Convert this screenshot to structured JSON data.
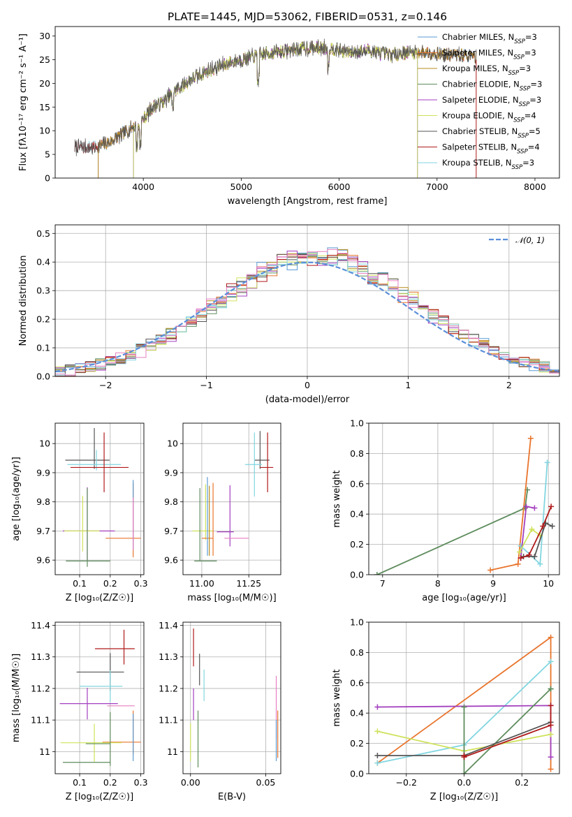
{
  "figure": {
    "title": "PLATE=1445, MJD=53062, FIBERID=0531, z=0.146"
  },
  "colors": {
    "chabrier_miles": "#5a9bd4",
    "salpeter_miles": "#e8742c",
    "kroupa_miles": "#b78b1c",
    "chabrier_elodie": "#5e8c5e",
    "salpeter_elodie": "#a33fbf",
    "kroupa_elodie": "#cfe25a",
    "chabrier_stelib": "#555555",
    "salpeter_stelib": "#b01a1a",
    "kroupa_stelib": "#82d6e0",
    "pink": "#e77fc0",
    "gauss": "#5b8fd9",
    "grid": "#b0b0b0"
  },
  "chart_data": [
    {
      "id": "spectrum",
      "type": "line",
      "xlabel": "wavelength [Angstrom, rest frame]",
      "ylabel": "Flux [fλ10⁻¹⁷ erg cm⁻² s⁻¹ A⁻¹]",
      "xlim": [
        3100,
        8250
      ],
      "ylim": [
        0,
        32
      ],
      "xticks": [
        4000,
        5000,
        6000,
        7000,
        8000
      ],
      "yticks": [
        0,
        5,
        10,
        15,
        20,
        25,
        30
      ],
      "grid": false,
      "legend_position": "top-right",
      "x_range_data": [
        3300,
        7400
      ],
      "spectrum_anchors": {
        "x": [
          3300,
          3500,
          3650,
          3800,
          3900,
          3950,
          4000,
          4100,
          4200,
          4300,
          4500,
          4700,
          4900,
          5100,
          5300,
          5500,
          5700,
          5900,
          6100,
          6300,
          6500,
          6700,
          6900,
          7100,
          7300,
          7400
        ],
        "y": [
          6.5,
          6.5,
          7.5,
          9.5,
          11,
          10.5,
          12.5,
          15,
          16,
          18,
          21,
          23,
          24.5,
          25.5,
          26.5,
          27,
          27.5,
          27.5,
          26.5,
          27,
          26,
          26.5,
          26.5,
          26,
          26,
          25.5
        ]
      },
      "series": [
        {
          "name": "Chabrier MILES, N_SSP=3",
          "color_key": "chabrier_miles",
          "start": 3540,
          "end": 7400
        },
        {
          "name": "Salpeter MILES, N_SSP=3",
          "color_key": "salpeter_miles",
          "start": 3540,
          "end": 7400
        },
        {
          "name": "Kroupa MILES, N_SSP=3",
          "color_key": "kroupa_miles",
          "start": 3540,
          "end": 7400
        },
        {
          "name": "Chabrier ELODIE, N_SSP=3",
          "color_key": "chabrier_elodie",
          "start": 3900,
          "end": 6800
        },
        {
          "name": "Salpeter ELODIE, N_SSP=3",
          "color_key": "salpeter_elodie",
          "start": 3900,
          "end": 6800
        },
        {
          "name": "Kroupa ELODIE, N_SSP=4",
          "color_key": "kroupa_elodie",
          "start": 3900,
          "end": 6800
        },
        {
          "name": "Chabrier STELIB, N_SSP=5",
          "color_key": "chabrier_stelib",
          "start": 3300,
          "end": 7400
        },
        {
          "name": "Salpeter STELIB, N_SSP=4",
          "color_key": "salpeter_stelib",
          "start": 3300,
          "end": 7400
        },
        {
          "name": "Kroupa STELIB, N_SSP=3",
          "color_key": "kroupa_stelib",
          "start": 3300,
          "end": 7400
        }
      ]
    },
    {
      "id": "residual_hist",
      "type": "line",
      "xlabel": "(data-model)/error",
      "ylabel": "Normed distribution",
      "xlim": [
        -2.5,
        2.5
      ],
      "ylim": [
        0,
        0.53
      ],
      "xticks": [
        -2,
        -1,
        0,
        1,
        2
      ],
      "xtick_labels": [
        "−2",
        "−1",
        "0",
        "1",
        "2"
      ],
      "yticks": [
        0.0,
        0.1,
        0.2,
        0.3,
        0.4,
        0.5
      ],
      "ytick_labels": [
        "0.0",
        "0.1",
        "0.2",
        "0.3",
        "0.4",
        "0.5"
      ],
      "grid": true,
      "legend_position": "top-right",
      "gaussian": {
        "name": "𝒩(0, 1)",
        "mean": 0,
        "sigma": 1,
        "color_key": "gauss"
      },
      "histogram_bins": {
        "start": -2.5,
        "width": 0.1,
        "count": 50
      }
    },
    {
      "id": "age_vs_Z",
      "type": "scatter",
      "xlabel": "Z [log₁₀(Z/Z☉)]",
      "ylabel": "age  [log₁₀(age/yr)]",
      "xlim": [
        0.02,
        0.31
      ],
      "ylim": [
        9.55,
        10.07
      ],
      "xticks": [
        0.1,
        0.2,
        0.3
      ],
      "yticks": [
        9.6,
        9.7,
        9.8,
        9.9,
        10.0
      ],
      "grid": true,
      "points": [
        {
          "x": 0.148,
          "y": 9.943,
          "xerr": [
            0.095,
            0.05
          ],
          "yerr": [
            0.03,
            0.11
          ],
          "color_key": "chabrier_stelib"
        },
        {
          "x": 0.155,
          "y": 9.928,
          "xerr": [
            0.095,
            0.08
          ],
          "yerr": [
            0.02,
            0.05
          ],
          "color_key": "kroupa_stelib"
        },
        {
          "x": 0.18,
          "y": 9.918,
          "xerr": [
            0.11,
            0.08
          ],
          "yerr": [
            0.085,
            0.12
          ],
          "color_key": "salpeter_stelib"
        },
        {
          "x": 0.125,
          "y": 9.7,
          "xerr": [
            0.08,
            0.09
          ],
          "yerr": [
            0.1,
            0.15
          ],
          "color_key": "salpeter_elodie"
        },
        {
          "x": 0.11,
          "y": 9.7,
          "xerr": [
            0.06,
            0.055
          ],
          "yerr": [
            0.07,
            0.12
          ],
          "color_key": "kroupa_elodie"
        },
        {
          "x": 0.275,
          "y": 9.675,
          "xerr": [
            0.09,
            0.025
          ],
          "yerr": [
            0.065,
            0.19
          ],
          "color_key": "salpeter_miles"
        },
        {
          "x": 0.275,
          "y": 9.675,
          "xerr": [
            0.0,
            0.0
          ],
          "yerr": [
            0.04,
            0.2
          ],
          "color_key": "chabrier_miles"
        },
        {
          "x": 0.275,
          "y": 9.675,
          "xerr": [
            0.0,
            0.0
          ],
          "yerr": [
            0.04,
            0.14
          ],
          "color_key": "pink"
        },
        {
          "x": 0.125,
          "y": 9.597,
          "xerr": [
            0.07,
            0.075
          ],
          "yerr": [
            0.02,
            0.25
          ],
          "color_key": "chabrier_elodie"
        }
      ]
    },
    {
      "id": "age_vs_mass",
      "type": "scatter",
      "xlabel": "mass [log₁₀(M/M☉)]",
      "ylabel": "",
      "xlim": [
        10.9,
        11.42
      ],
      "ylim": [
        9.55,
        10.07
      ],
      "xticks": [
        11.0,
        11.25
      ],
      "xtick_labels": [
        "11.00",
        "11.25"
      ],
      "yticks": [
        9.6,
        9.7,
        9.8,
        9.9,
        10.0
      ],
      "grid": true,
      "points": [
        {
          "x": 11.31,
          "y": 9.943,
          "xerr": [
            0.03,
            0.05
          ],
          "yerr": [
            0.03,
            0.1
          ],
          "color_key": "chabrier_stelib"
        },
        {
          "x": 11.28,
          "y": 9.928,
          "xerr": [
            0.05,
            0.04
          ],
          "yerr": [
            0.11,
            0.11
          ],
          "color_key": "kroupa_stelib"
        },
        {
          "x": 11.35,
          "y": 9.918,
          "xerr": [
            0.04,
            0.03
          ],
          "yerr": [
            0.085,
            0.12
          ],
          "color_key": "salpeter_stelib"
        },
        {
          "x": 11.15,
          "y": 9.697,
          "xerr": [
            0.07,
            0.02
          ],
          "yerr": [
            0.05,
            0.16
          ],
          "color_key": "salpeter_elodie"
        },
        {
          "x": 11.02,
          "y": 9.7,
          "xerr": [
            0.07,
            0.04
          ],
          "yerr": [
            0.03,
            0.16
          ],
          "color_key": "kroupa_elodie"
        },
        {
          "x": 11.06,
          "y": 9.675,
          "xerr": [
            0.06,
            0.0
          ],
          "yerr": [
            0.06,
            0.19
          ],
          "color_key": "salpeter_miles"
        },
        {
          "x": 11.03,
          "y": 9.675,
          "xerr": [
            0.0,
            0.0
          ],
          "yerr": [
            0.06,
            0.21
          ],
          "color_key": "chabrier_miles"
        },
        {
          "x": 11.17,
          "y": 9.675,
          "xerr": [
            0.05,
            0.08
          ],
          "yerr": [
            0.0,
            0.0
          ],
          "color_key": "pink"
        },
        {
          "x": 10.99,
          "y": 9.597,
          "xerr": [
            0.03,
            0.09
          ],
          "yerr": [
            0.0,
            0.25
          ],
          "color_key": "chabrier_elodie"
        },
        {
          "x": 11.04,
          "y": 9.675,
          "xerr": [
            0.0,
            0.0
          ],
          "yerr": [
            0.06,
            0.18
          ],
          "color_key": "kroupa_miles"
        }
      ]
    },
    {
      "id": "weight_vs_age",
      "type": "line",
      "xlabel": "age  [log₁₀(age/yr)]",
      "ylabel": "mass weight",
      "xlim": [
        6.75,
        10.2
      ],
      "ylim": [
        0,
        1.0
      ],
      "xticks": [
        7,
        8,
        9,
        10
      ],
      "yticks": [
        0.0,
        0.2,
        0.4,
        0.6,
        0.8,
        1.0
      ],
      "grid": true,
      "series": [
        {
          "color_key": "chabrier_elodie",
          "x": [
            6.9,
            9.58,
            9.62
          ],
          "y": [
            0.0,
            0.44,
            0.56
          ]
        },
        {
          "color_key": "salpeter_miles",
          "x": [
            8.95,
            9.45,
            9.68
          ],
          "y": [
            0.03,
            0.07,
            0.9
          ]
        },
        {
          "color_key": "kroupa_stelib",
          "x": [
            9.5,
            9.85,
            9.98
          ],
          "y": [
            0.19,
            0.07,
            0.74
          ]
        },
        {
          "color_key": "salpeter_elodie",
          "x": [
            9.5,
            9.6,
            9.75
          ],
          "y": [
            0.11,
            0.45,
            0.44
          ]
        },
        {
          "color_key": "kroupa_elodie",
          "x": [
            9.48,
            9.7,
            9.85
          ],
          "y": [
            0.15,
            0.3,
            0.26
          ]
        },
        {
          "color_key": "chabrier_stelib",
          "x": [
            9.55,
            9.75,
            9.95,
            10.07
          ],
          "y": [
            0.12,
            0.12,
            0.34,
            0.32
          ]
        },
        {
          "color_key": "salpeter_stelib",
          "x": [
            9.5,
            9.65,
            9.9,
            10.05
          ],
          "y": [
            0.11,
            0.13,
            0.32,
            0.45
          ]
        }
      ]
    },
    {
      "id": "mass_vs_Z",
      "type": "scatter",
      "xlabel": "Z [log₁₀(Z/Z☉)]",
      "ylabel": "mass [log₁₀(M/M☉)]",
      "xlim": [
        0.02,
        0.31
      ],
      "ylim": [
        10.93,
        11.41
      ],
      "xticks": [
        0.1,
        0.2,
        0.3
      ],
      "yticks": [
        11.0,
        11.1,
        11.2,
        11.3,
        11.4
      ],
      "grid": true,
      "points": [
        {
          "x": 0.245,
          "y": 11.326,
          "xerr": [
            0.095,
            0.035
          ],
          "yerr": [
            0.05,
            0.06
          ],
          "color_key": "salpeter_stelib"
        },
        {
          "x": 0.2,
          "y": 11.252,
          "xerr": [
            0.11,
            0.045
          ],
          "yerr": [
            0.06,
            0.06
          ],
          "color_key": "chabrier_stelib"
        },
        {
          "x": 0.2,
          "y": 11.207,
          "xerr": [
            0.1,
            0.04
          ],
          "yerr": [
            0.05,
            0.05
          ],
          "color_key": "kroupa_stelib"
        },
        {
          "x": 0.125,
          "y": 11.152,
          "xerr": [
            0.09,
            0.1
          ],
          "yerr": [
            0.05,
            0.05
          ],
          "color_key": "salpeter_elodie"
        },
        {
          "x": 0.23,
          "y": 11.145,
          "xerr": [
            0.04,
            0.05
          ],
          "yerr": [
            0.0,
            0.0
          ],
          "color_key": "pink"
        },
        {
          "x": 0.275,
          "y": 11.03,
          "xerr": [
            0.1,
            0.025
          ],
          "yerr": [
            0.04,
            0.1
          ],
          "color_key": "salpeter_miles"
        },
        {
          "x": 0.275,
          "y": 11.02,
          "xerr": [
            0.0,
            0.0
          ],
          "yerr": [
            0.05,
            0.1
          ],
          "color_key": "chabrier_miles"
        },
        {
          "x": 0.148,
          "y": 11.028,
          "xerr": [
            0.11,
            0.09
          ],
          "yerr": [
            0.06,
            0.06
          ],
          "color_key": "kroupa_elodie"
        },
        {
          "x": 0.2,
          "y": 11.025,
          "xerr": [
            0.08,
            0.0
          ],
          "yerr": [
            0.07,
            0.1
          ],
          "color_key": "chabrier_elodie"
        },
        {
          "x": 0.125,
          "y": 10.966,
          "xerr": [
            0.08,
            0.075
          ],
          "yerr": [
            0.0,
            0.0
          ],
          "color_key": "chabrier_elodie"
        }
      ]
    },
    {
      "id": "mass_vs_ebv",
      "type": "scatter",
      "xlabel": "E(B-V)",
      "ylabel": "",
      "xlim": [
        -0.005,
        0.06
      ],
      "ylim": [
        10.93,
        11.41
      ],
      "xticks": [
        0.0,
        0.05
      ],
      "xtick_labels": [
        "0.00",
        "0.05"
      ],
      "yticks": [
        11.0,
        11.1,
        11.2,
        11.3,
        11.4
      ],
      "grid": true,
      "points": [
        {
          "x": 0.002,
          "y": 11.33,
          "xerr": [
            0,
            0
          ],
          "yerr": [
            0.06,
            0.06
          ],
          "color_key": "salpeter_stelib"
        },
        {
          "x": 0.006,
          "y": 11.26,
          "xerr": [
            0,
            0
          ],
          "yerr": [
            0.05,
            0.05
          ],
          "color_key": "chabrier_stelib"
        },
        {
          "x": 0.009,
          "y": 11.21,
          "xerr": [
            0,
            0
          ],
          "yerr": [
            0.05,
            0.05
          ],
          "color_key": "kroupa_stelib"
        },
        {
          "x": 0.002,
          "y": 11.15,
          "xerr": [
            0,
            0
          ],
          "yerr": [
            0.05,
            0.05
          ],
          "color_key": "salpeter_elodie"
        },
        {
          "x": 0.0,
          "y": 11.03,
          "xerr": [
            0,
            0
          ],
          "yerr": [
            0.06,
            0.06
          ],
          "color_key": "kroupa_elodie"
        },
        {
          "x": 0.005,
          "y": 11.03,
          "xerr": [
            0,
            0
          ],
          "yerr": [
            0.08,
            0.1
          ],
          "color_key": "chabrier_elodie"
        },
        {
          "x": 0.057,
          "y": 11.14,
          "xerr": [
            0,
            0
          ],
          "yerr": [
            0.1,
            0.1
          ],
          "color_key": "pink"
        },
        {
          "x": 0.058,
          "y": 11.03,
          "xerr": [
            0,
            0
          ],
          "yerr": [
            0.05,
            0.1
          ],
          "color_key": "salpeter_miles"
        },
        {
          "x": 0.057,
          "y": 11.02,
          "xerr": [
            0,
            0
          ],
          "yerr": [
            0.05,
            0.08
          ],
          "color_key": "chabrier_miles"
        }
      ]
    },
    {
      "id": "weight_vs_Z",
      "type": "line",
      "xlabel": "Z [log₁₀(Z/Z☉)]",
      "ylabel": "mass weight",
      "xlim": [
        -0.33,
        0.33
      ],
      "ylim": [
        0,
        1.0
      ],
      "xticks": [
        -0.2,
        0.0,
        0.2
      ],
      "xtick_labels": [
        "−0.2",
        "0.0",
        "0.2"
      ],
      "yticks": [
        0.0,
        0.2,
        0.4,
        0.6,
        0.8,
        1.0
      ],
      "grid": true,
      "series": [
        {
          "color_key": "salpeter_miles",
          "x": [
            -0.3,
            0.3,
            0.3
          ],
          "y": [
            0.07,
            0.9,
            0.03
          ]
        },
        {
          "color_key": "kroupa_stelib",
          "x": [
            -0.3,
            0.0,
            0.3
          ],
          "y": [
            0.07,
            0.19,
            0.74
          ]
        },
        {
          "color_key": "salpeter_elodie",
          "x": [
            -0.3,
            0.3,
            0.3
          ],
          "y": [
            0.44,
            0.45,
            0.11
          ]
        },
        {
          "color_key": "kroupa_elodie",
          "x": [
            -0.3,
            0.0,
            0.3
          ],
          "y": [
            0.28,
            0.15,
            0.26
          ]
        },
        {
          "color_key": "chabrier_elodie",
          "x": [
            0.0,
            0.0,
            0.3,
            0.3
          ],
          "y": [
            0.44,
            0.0,
            0.56,
            0.56
          ]
        },
        {
          "color_key": "chabrier_stelib",
          "x": [
            -0.3,
            0.0,
            0.3
          ],
          "y": [
            0.12,
            0.12,
            0.34
          ]
        },
        {
          "color_key": "salpeter_stelib",
          "x": [
            0.0,
            0.0,
            0.3,
            0.3
          ],
          "y": [
            0.12,
            0.11,
            0.32,
            0.45
          ]
        }
      ]
    }
  ]
}
